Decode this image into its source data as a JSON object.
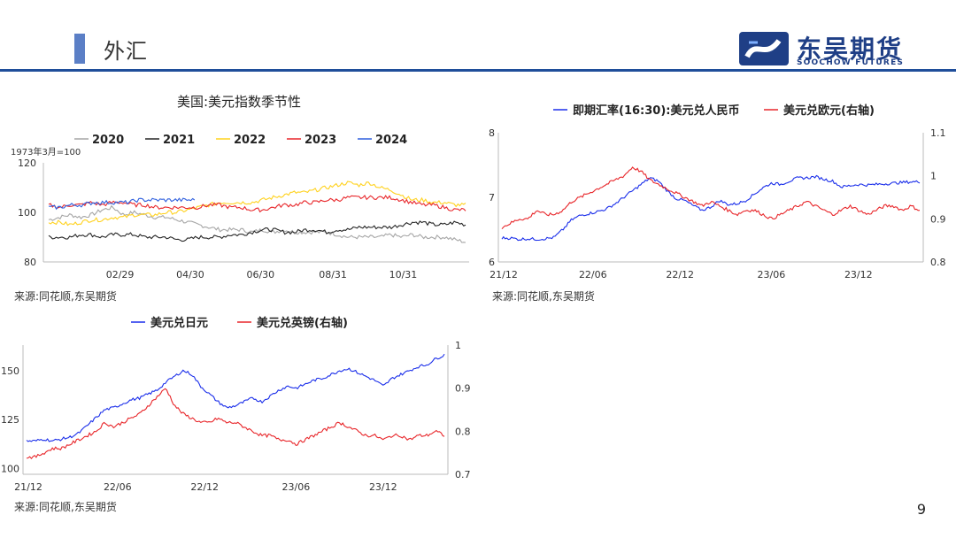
{
  "header": {
    "title": "外汇"
  },
  "logo": {
    "name": "东吴期货",
    "subtitle": "SOOCHOW FUTURES"
  },
  "page_number": "9",
  "sources": {
    "chart1": "来源:同花顺,东吴期货",
    "chart2": "来源:同花顺,东吴期货",
    "chart3": "来源:同花顺,东吴期货"
  },
  "chart_data": [
    {
      "type": "line",
      "title": "美国:美元指数季节性",
      "ylabel": "1973年3月=100",
      "ylim": [
        80,
        120
      ],
      "yticks": [
        "80",
        "100",
        "120"
      ],
      "xticks": [
        "02/29",
        "04/30",
        "06/30",
        "08/31",
        "10/31"
      ],
      "grid": false,
      "legend": "top",
      "series": [
        {
          "name": "2020",
          "color": "#a6a6a6",
          "values": [
            97,
            98,
            99,
            98,
            99,
            101,
            102,
            99,
            100,
            99,
            98,
            98,
            97,
            96,
            95,
            94,
            93,
            93,
            93,
            92,
            93,
            92,
            93,
            92,
            92,
            92,
            92,
            91,
            90,
            90,
            90,
            90,
            91,
            90,
            91,
            90,
            90,
            90,
            89,
            88
          ]
        },
        {
          "name": "2021",
          "color": "#262626",
          "values": [
            90,
            90,
            90,
            91,
            91,
            90,
            91,
            91,
            91,
            90,
            90,
            90,
            89,
            89,
            90,
            90,
            90,
            91,
            91,
            92,
            93,
            93,
            92,
            92,
            93,
            93,
            92,
            93,
            93,
            94,
            94,
            94,
            94,
            95,
            96,
            96,
            95,
            95,
            96,
            95
          ]
        },
        {
          "name": "2022",
          "color": "#ffd21f",
          "values": [
            96,
            96,
            95,
            96,
            97,
            97,
            98,
            98,
            99,
            99,
            99,
            100,
            100,
            101,
            102,
            103,
            104,
            104,
            104,
            104,
            105,
            106,
            107,
            108,
            108,
            109,
            110,
            111,
            112,
            111,
            112,
            110,
            109,
            107,
            105,
            105,
            104,
            104,
            103,
            103
          ]
        },
        {
          "name": "2023",
          "color": "#e8262a",
          "values": [
            103,
            102,
            103,
            103,
            104,
            103,
            104,
            104,
            103,
            103,
            102,
            102,
            102,
            102,
            102,
            103,
            103,
            102,
            102,
            101,
            101,
            102,
            103,
            103,
            104,
            104,
            105,
            105,
            106,
            106,
            106,
            106,
            106,
            105,
            104,
            103,
            103,
            102,
            101,
            101
          ]
        },
        {
          "name": "2024",
          "color": "#2f5fde",
          "values": [
            102,
            102,
            103,
            103,
            104,
            104,
            104,
            104,
            105,
            105,
            105,
            105,
            105,
            105
          ]
        }
      ]
    },
    {
      "type": "line",
      "title": "",
      "xticks": [
        "21/12",
        "22/06",
        "22/12",
        "23/06",
        "23/12"
      ],
      "ylim": [
        6,
        8
      ],
      "yticks": [
        "6",
        "7",
        "8"
      ],
      "y2lim": [
        0.8,
        1.1
      ],
      "y2ticks": [
        "0.8",
        "0.9",
        "1",
        "1.1"
      ],
      "legend": "top",
      "series": [
        {
          "name": "即期汇率(16:30):美元兑人民币",
          "color": "#1a2eea",
          "axis": "left",
          "values": [
            6.37,
            6.37,
            6.35,
            6.36,
            6.35,
            6.36,
            6.38,
            6.5,
            6.65,
            6.72,
            6.75,
            6.78,
            6.82,
            6.9,
            7.0,
            7.1,
            7.2,
            7.3,
            7.25,
            7.1,
            6.98,
            6.95,
            6.87,
            6.8,
            6.85,
            6.95,
            6.89,
            6.9,
            6.95,
            7.05,
            7.15,
            7.22,
            7.2,
            7.25,
            7.3,
            7.3,
            7.32,
            7.28,
            7.25,
            7.16,
            7.18,
            7.2,
            7.19,
            7.2,
            7.21,
            7.22,
            7.23,
            7.24,
            7.24
          ]
        },
        {
          "name": "美元兑欧元(右轴)",
          "color": "#e8262a",
          "axis": "right",
          "values": [
            0.88,
            0.89,
            0.9,
            0.9,
            0.92,
            0.91,
            0.91,
            0.92,
            0.94,
            0.95,
            0.96,
            0.97,
            0.98,
            0.99,
            1.0,
            1.02,
            1.01,
            0.99,
            0.98,
            0.97,
            0.96,
            0.95,
            0.94,
            0.93,
            0.94,
            0.93,
            0.92,
            0.91,
            0.92,
            0.92,
            0.91,
            0.9,
            0.91,
            0.92,
            0.93,
            0.94,
            0.93,
            0.92,
            0.91,
            0.92,
            0.93,
            0.92,
            0.91,
            0.92,
            0.93,
            0.93,
            0.92,
            0.93,
            0.92
          ]
        }
      ]
    },
    {
      "type": "line",
      "title": "",
      "xticks": [
        "21/12",
        "22/06",
        "22/12",
        "23/06",
        "23/12"
      ],
      "ylim": [
        97,
        163
      ],
      "yticks": [
        "100",
        "125",
        "150"
      ],
      "y2lim": [
        0.7,
        1.0
      ],
      "y2ticks": [
        "0.7",
        "0.8",
        "0.9",
        "1"
      ],
      "legend": "top",
      "series": [
        {
          "name": "美元兑日元",
          "color": "#1a2eea",
          "axis": "left",
          "values": [
            114,
            114,
            115,
            114,
            115,
            116,
            118,
            122,
            126,
            130,
            131,
            133,
            135,
            136,
            138,
            140,
            144,
            147,
            150,
            148,
            142,
            138,
            134,
            131,
            132,
            134,
            136,
            134,
            137,
            140,
            142,
            141,
            143,
            145,
            146,
            148,
            150,
            151,
            149,
            147,
            145,
            142,
            146,
            148,
            150,
            152,
            153,
            156,
            158
          ]
        },
        {
          "name": "美元兑英镑(右轴)",
          "color": "#e8262a",
          "axis": "right",
          "values": [
            0.74,
            0.74,
            0.75,
            0.76,
            0.76,
            0.77,
            0.78,
            0.79,
            0.8,
            0.82,
            0.81,
            0.82,
            0.83,
            0.84,
            0.86,
            0.88,
            0.9,
            0.86,
            0.84,
            0.83,
            0.82,
            0.82,
            0.83,
            0.82,
            0.82,
            0.81,
            0.8,
            0.79,
            0.79,
            0.78,
            0.78,
            0.77,
            0.78,
            0.79,
            0.8,
            0.81,
            0.82,
            0.81,
            0.8,
            0.79,
            0.79,
            0.78,
            0.79,
            0.79,
            0.78,
            0.79,
            0.79,
            0.8,
            0.79
          ]
        }
      ]
    }
  ]
}
